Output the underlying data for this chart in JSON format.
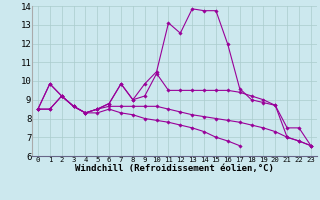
{
  "background_color": "#cce8ee",
  "line_color": "#990099",
  "grid_color": "#aacccc",
  "xlabel": "Windchill (Refroidissement éolien,°C)",
  "xlabel_fontsize": 6.5,
  "ylabel_fontsize": 6.5,
  "tick_fontsize": 6.0,
  "xlim": [
    -0.5,
    23.5
  ],
  "ylim": [
    6,
    14
  ],
  "yticks": [
    6,
    7,
    8,
    9,
    10,
    11,
    12,
    13,
    14
  ],
  "xticks": [
    0,
    1,
    2,
    3,
    4,
    5,
    6,
    7,
    8,
    9,
    10,
    11,
    12,
    13,
    14,
    15,
    16,
    17,
    18,
    19,
    20,
    21,
    22,
    23
  ],
  "series1": [
    8.5,
    9.85,
    9.2,
    8.65,
    8.3,
    8.5,
    8.8,
    9.85,
    9.0,
    9.85,
    10.5,
    13.1,
    12.55,
    13.85,
    13.75,
    13.75,
    11.95,
    9.6,
    9.0,
    8.85,
    8.7,
    7.5,
    7.5,
    6.55
  ],
  "series2": [
    8.5,
    9.85,
    9.2,
    8.65,
    8.3,
    8.5,
    8.8,
    9.85,
    9.0,
    9.2,
    10.4,
    9.5,
    9.5,
    9.5,
    9.5,
    9.5,
    9.5,
    9.4,
    9.2,
    9.0,
    8.7,
    7.0,
    6.8,
    6.55
  ],
  "series3": [
    8.5,
    8.5,
    9.2,
    8.65,
    8.3,
    8.5,
    8.65,
    8.65,
    8.65,
    8.65,
    8.65,
    8.5,
    8.35,
    8.2,
    8.1,
    8.0,
    7.9,
    7.8,
    7.65,
    7.5,
    7.3,
    7.0,
    6.8,
    6.55
  ],
  "series4": [
    8.5,
    8.5,
    9.2,
    8.65,
    8.3,
    8.3,
    8.5,
    8.3,
    8.2,
    8.0,
    7.9,
    7.8,
    7.65,
    7.5,
    7.3,
    7.0,
    6.8,
    6.55,
    null,
    null,
    null,
    null,
    null,
    null
  ]
}
